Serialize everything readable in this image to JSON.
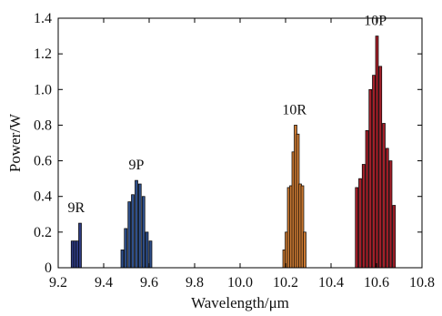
{
  "chart_data": {
    "type": "bar",
    "title": "",
    "xlabel": "Wavelength/μm",
    "ylabel": "Power/W",
    "xlim": [
      9.2,
      10.8
    ],
    "ylim": [
      0,
      1.4
    ],
    "xticks": [
      "9.2",
      "9.4",
      "9.6",
      "9.8",
      "10.0",
      "10.2",
      "10.4",
      "10.6",
      "10.8"
    ],
    "yticks": [
      "0",
      "0.2",
      "0.4",
      "0.6",
      "0.8",
      "1.0",
      "1.2",
      "1.4"
    ],
    "xtick_values": [
      9.2,
      9.4,
      9.6,
      9.8,
      10.0,
      10.2,
      10.4,
      10.6,
      10.8
    ],
    "ytick_values": [
      0,
      0.2,
      0.4,
      0.6,
      0.8,
      1.0,
      1.2,
      1.4
    ],
    "grid": false,
    "bar_outline_color": "#000000",
    "series": [
      {
        "label": "9R",
        "color": "#2e3b80",
        "x": [
          9.263,
          9.274,
          9.285,
          9.296
        ],
        "values": [
          0.15,
          0.15,
          0.15,
          0.25
        ]
      },
      {
        "label": "9P",
        "color": "#2f4f8a",
        "x": [
          9.482,
          9.497,
          9.513,
          9.528,
          9.544,
          9.559,
          9.575,
          9.59,
          9.606
        ],
        "values": [
          0.1,
          0.22,
          0.37,
          0.41,
          0.49,
          0.47,
          0.4,
          0.2,
          0.15
        ]
      },
      {
        "label": "10R",
        "color": "#c87832",
        "x": [
          10.194,
          10.204,
          10.214,
          10.224,
          10.234,
          10.244,
          10.254,
          10.264,
          10.274,
          10.284
        ],
        "values": [
          0.1,
          0.2,
          0.45,
          0.46,
          0.65,
          0.8,
          0.75,
          0.47,
          0.46,
          0.2
        ]
      },
      {
        "label": "10P",
        "color": "#a3202a",
        "x": [
          10.513,
          10.528,
          10.543,
          10.558,
          10.573,
          10.588,
          10.602,
          10.617,
          10.632,
          10.647,
          10.662,
          10.677
        ],
        "values": [
          0.45,
          0.5,
          0.58,
          0.77,
          1.0,
          1.08,
          1.3,
          1.13,
          0.81,
          0.67,
          0.6,
          0.35
        ]
      }
    ]
  }
}
